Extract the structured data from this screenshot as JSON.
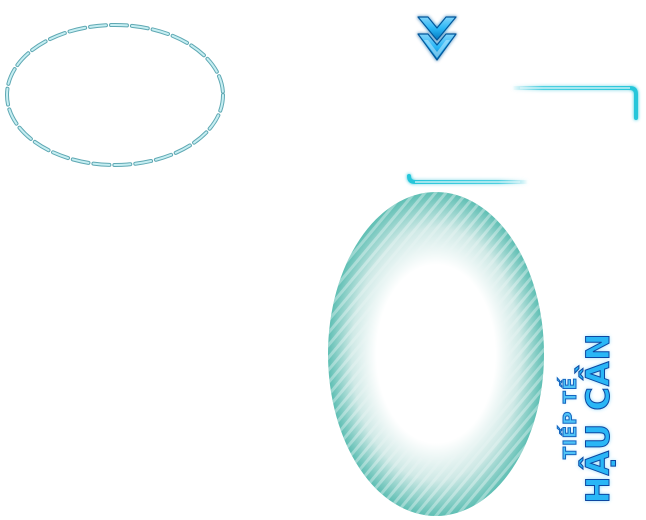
{
  "title": {
    "line1": "TIẾP TẾ",
    "line2": "HẬU CẦN"
  },
  "icons": {
    "arrow": "double-chevron-down-icon",
    "frame": "corner-frame-icon",
    "ring": "dashed-ellipse-icon",
    "orb": "glow-ellipse-icon"
  },
  "colors": {
    "accent_cyan": "#29b6f6",
    "frame_cyan": "#4dd0e1",
    "orb_teal": "#5fbfb4",
    "dash_teal": "#8fd3dc"
  }
}
